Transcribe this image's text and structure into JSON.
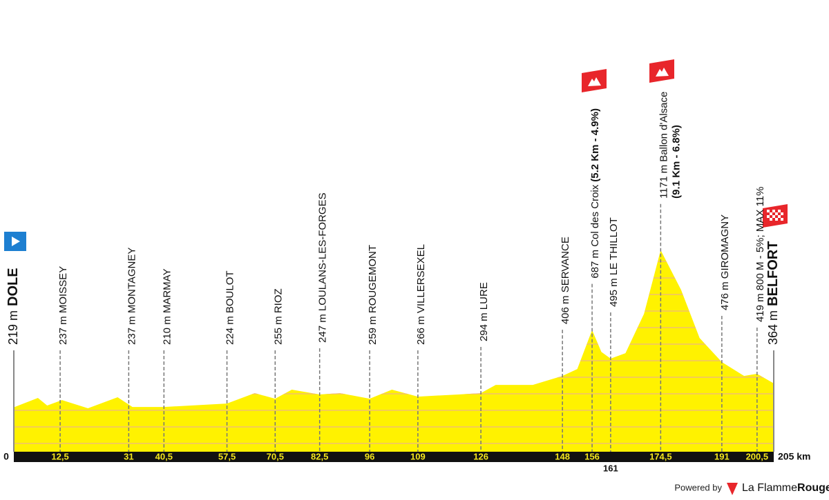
{
  "chart_data": {
    "type": "profile",
    "color": "#fff200",
    "xlim": [
      0,
      205
    ],
    "ylim": [
      -50,
      1400
    ],
    "xticks": [
      0,
      {
        "value": 205,
        "label": "205 km"
      }
    ],
    "start": {
      "label": "219 m",
      "name": "DOLE"
    },
    "finish": {
      "label": "364 m",
      "name": "BELFORT"
    },
    "waypoints": [
      {
        "km": {
          "value": 12.5,
          "label": "12,5"
        },
        "label": "237 m MOISSEY"
      },
      {
        "km": 31,
        "label": "237 m MONTAGNEY"
      },
      {
        "km": {
          "value": 40.5,
          "label": "40,5"
        },
        "label": "210 m MARMAY"
      },
      {
        "km": {
          "value": 57.5,
          "label": "57,5"
        },
        "label": "224 m BOULOT"
      },
      {
        "km": {
          "value": 70.5,
          "label": "70,5"
        },
        "label": "255 m RIOZ"
      },
      {
        "km": {
          "value": 82.5,
          "label": "82,5"
        },
        "label": "247 m LOULANS-LES-FORGES"
      },
      {
        "km": 96,
        "label": "259 m ROUGEMONT"
      },
      {
        "km": 109,
        "label": "266 m VILLERSEXEL"
      },
      {
        "km": 126,
        "label": "294 m LURE"
      },
      {
        "km": 148,
        "label": "406 m SERVANCE"
      },
      {
        "km": 156,
        "label": "687 m Col des Croix",
        "detail": "(5.2 Km - 4.9%)"
      },
      {
        "km": 161,
        "label": "495 m LE THILLOT"
      },
      {
        "km": {
          "value": 174.5,
          "label": "174,5"
        },
        "label": "1171 m Ballon d'Alsace",
        "detail": "(9.1 Km - 6.8%)"
      },
      {
        "km": 191,
        "label": "476 m GIROMAGNY"
      },
      {
        "km": {
          "value": 200.5,
          "label": "200,5"
        },
        "label": "419 m 800 M - 5%; MAX 11%"
      }
    ],
    "x": [
      0,
      6.5,
      9,
      13,
      20,
      28,
      32,
      40.5,
      57.5,
      65,
      70.5,
      75,
      82.5,
      88,
      96,
      102,
      109,
      120,
      126,
      130,
      140,
      148,
      152,
      156,
      158.5,
      161,
      165,
      170,
      174.5,
      180,
      185,
      191,
      197,
      200.5,
      205
    ],
    "values": [
      219,
      276,
      230,
      263,
      213,
      280,
      221,
      221,
      242,
      305,
      271,
      326,
      297,
      305,
      271,
      326,
      284,
      297,
      305,
      355,
      355,
      409,
      451,
      687,
      555,
      514,
      547,
      785,
      1171,
      931,
      639,
      493,
      409,
      422,
      364
    ]
  },
  "footer": {
    "powered": "Powered by",
    "brand": "La Flamme",
    "brand_bold": "Rouge"
  }
}
